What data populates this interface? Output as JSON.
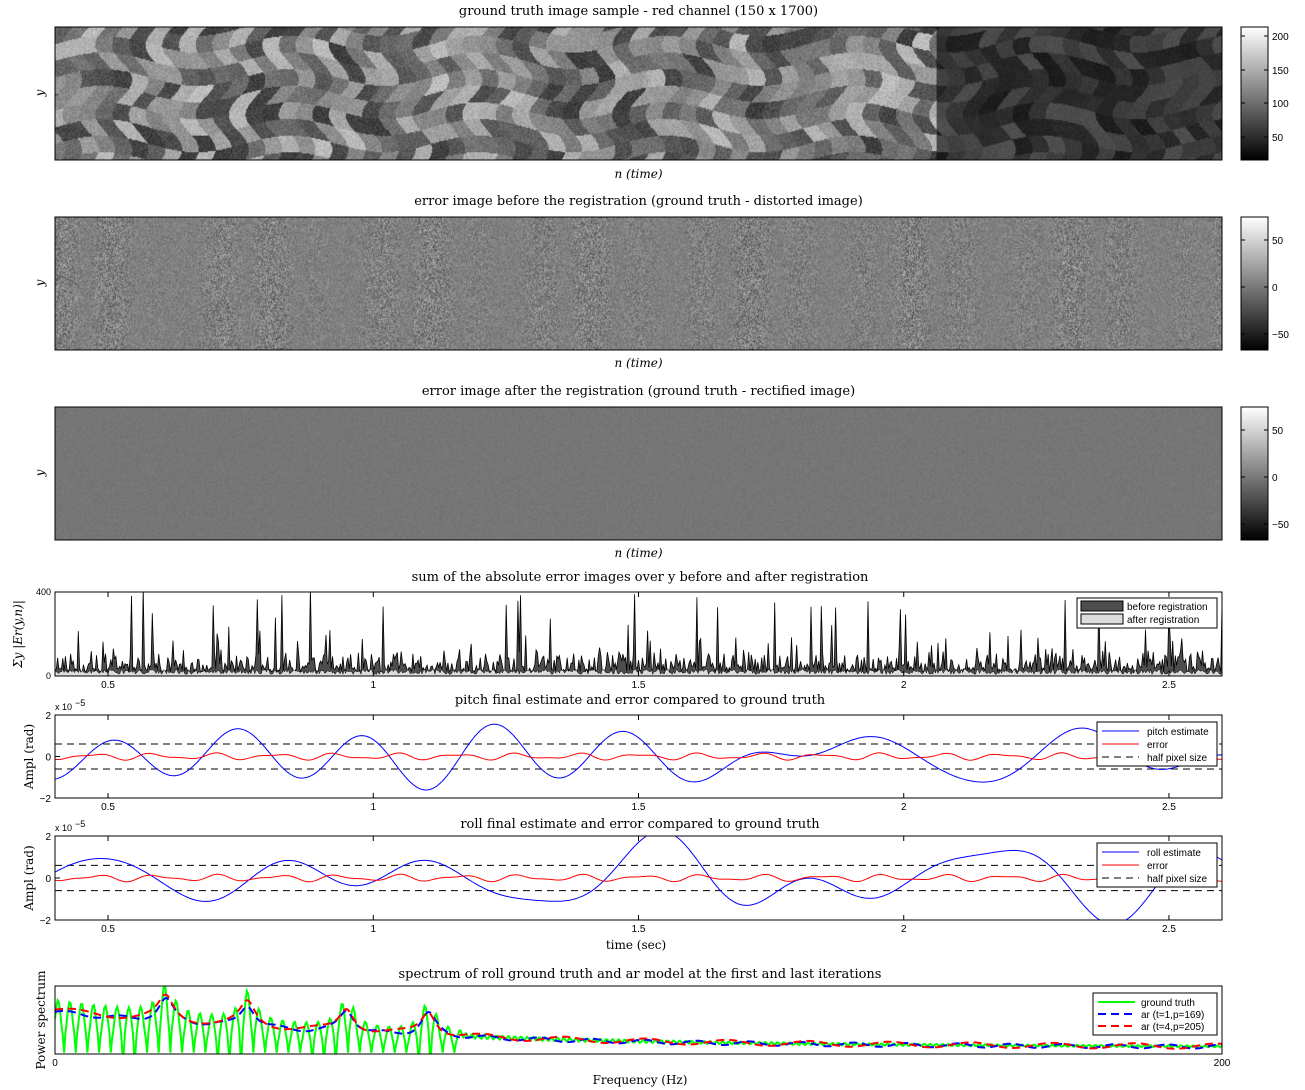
{
  "chart_data": [
    {
      "type": "heatmap",
      "title": "ground truth image sample - red channel (150 x 1700)",
      "xlabel": "n (time)",
      "ylabel": "y",
      "colorbar": {
        "ticks": [
          "200",
          "150",
          "100",
          "50"
        ],
        "range": [
          15,
          215
        ]
      },
      "style": "satellite",
      "colormap": "gray"
    },
    {
      "type": "heatmap",
      "title": "error image before the registration (ground truth - distorted image)",
      "xlabel": "n (time)",
      "ylabel": "y",
      "colorbar": {
        "ticks": [
          "50",
          "0",
          "−50"
        ],
        "range": [
          -75,
          75
        ]
      },
      "style": "error-strong",
      "colormap": "gray"
    },
    {
      "type": "heatmap",
      "title": "error image after the registration (ground truth - rectified image)",
      "xlabel": "n (time)",
      "ylabel": "y",
      "colorbar": {
        "ticks": [
          "50",
          "0",
          "−50"
        ],
        "range": [
          -75,
          75
        ]
      },
      "style": "error-weak",
      "colormap": "gray"
    },
    {
      "type": "area",
      "title": "sum of the absolute error images over y before and after registration",
      "ylabel": "Σy |Er(y,n)|",
      "xlim": [
        0.4,
        2.6
      ],
      "ylim": [
        0,
        400
      ],
      "xticks": [
        "0.5",
        "1",
        "1.5",
        "2",
        "2.5"
      ],
      "yticks": [
        "0",
        "400"
      ],
      "legend": {
        "position": "top-right",
        "entries": [
          "before registration",
          "after registration"
        ]
      },
      "colors": {
        "before": "#4d4d4d",
        "after": "#dcdcdc"
      }
    },
    {
      "type": "line",
      "title": "pitch final estimate and error compared to ground truth",
      "ylabel": "Ampl (rad)",
      "exponent": "x 10",
      "exponent_power": "−5",
      "xlim": [
        0.4,
        2.6
      ],
      "ylim": [
        -2,
        2
      ],
      "xticks": [
        "0.5",
        "1",
        "1.5",
        "2",
        "2.5"
      ],
      "yticks": [
        "2",
        "0",
        "−2"
      ],
      "half_pixel": 0.6,
      "legend": {
        "position": "top-right",
        "entries": [
          "pitch estimate",
          "error",
          "half pixel size"
        ]
      },
      "colors": {
        "estimate": "#0000ff",
        "error": "#ff0000",
        "half": "#000000"
      },
      "seed": 7
    },
    {
      "type": "line",
      "title": "roll final estimate and error compared to ground truth",
      "ylabel": "Ampl (rad)",
      "xlabel": "time (sec)",
      "exponent": "x 10",
      "exponent_power": "−5",
      "xlim": [
        0.4,
        2.6
      ],
      "ylim": [
        -2,
        2
      ],
      "xticks": [
        "0.5",
        "1",
        "1.5",
        "2",
        "2.5"
      ],
      "yticks": [
        "2",
        "0",
        "−2"
      ],
      "half_pixel": 0.6,
      "legend": {
        "position": "top-right",
        "entries": [
          "roll estimate",
          "error",
          "half pixel size"
        ]
      },
      "colors": {
        "estimate": "#0000ff",
        "error": "#ff0000",
        "half": "#000000"
      },
      "seed": 13
    },
    {
      "type": "line",
      "title": "spectrum of roll ground truth and ar model at the first and last iterations",
      "xlabel": "Frequency (Hz)",
      "ylabel": "Power spectrum",
      "xlim": [
        0,
        200
      ],
      "xticks": [
        "0",
        "200"
      ],
      "peaks_hz": [
        19,
        33,
        50,
        64
      ],
      "legend": {
        "position": "top-right",
        "entries": [
          "ground truth",
          "ar (t=1,p=169)",
          "ar (t=4,p=205)"
        ]
      },
      "colors": {
        "truth": "#00ff00",
        "ar1": "#0000ff",
        "ar4": "#ff0000"
      }
    }
  ]
}
